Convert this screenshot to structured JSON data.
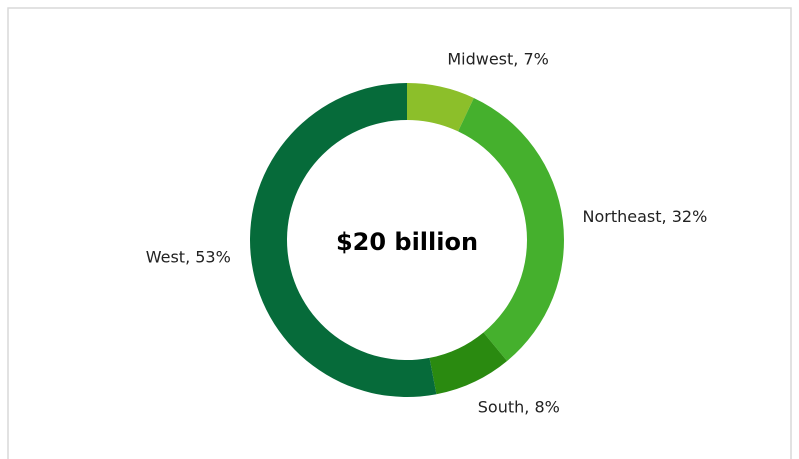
{
  "chart_data": {
    "type": "donut",
    "center_text": "$20 billion",
    "categories": [
      "Midwest",
      "Northeast",
      "South",
      "West"
    ],
    "values": [
      7,
      32,
      8,
      53
    ],
    "value_labels": [
      "7%",
      "32%",
      "8%",
      "53%"
    ],
    "colors": [
      "#8cbf2a",
      "#45b02d",
      "#2a8a10",
      "#066b3a"
    ]
  }
}
